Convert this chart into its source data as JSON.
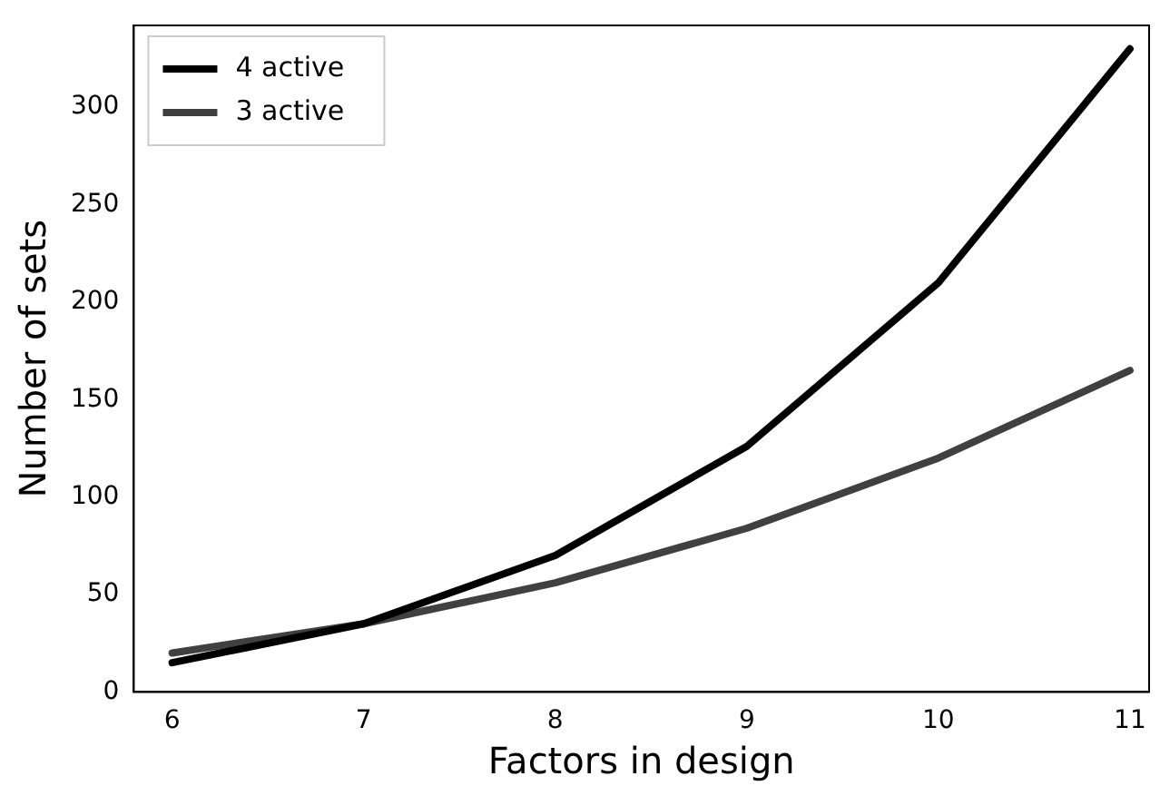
{
  "chart_data": {
    "type": "line",
    "xlabel": "Factors in design",
    "ylabel": "Number of sets",
    "x": [
      6,
      7,
      8,
      9,
      10,
      11
    ],
    "series": [
      {
        "name": "4 active",
        "color": "#000000",
        "values": [
          15,
          35,
          70,
          126,
          210,
          330
        ]
      },
      {
        "name": "3 active",
        "color": "#404040",
        "values": [
          20,
          35,
          56,
          84,
          120,
          165
        ]
      }
    ],
    "xlim": [
      5.8,
      11.1
    ],
    "xticks": [
      6,
      7,
      8,
      9,
      10,
      11
    ],
    "ylim": [
      0,
      342
    ],
    "yticks": [
      0,
      50,
      100,
      150,
      200,
      250,
      300
    ],
    "grid": false,
    "legend": "top left",
    "marker": "none",
    "line_style": "solid"
  }
}
